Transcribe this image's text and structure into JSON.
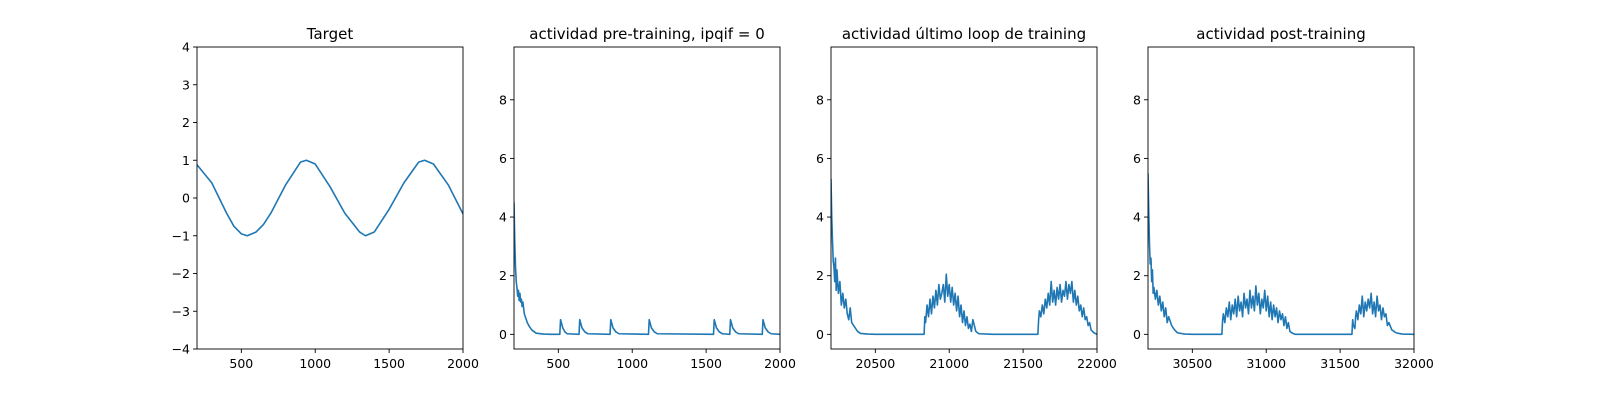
{
  "figure": {
    "line_color": "#1f77b4",
    "axis_color": "#000000",
    "background": "#ffffff"
  },
  "chart_data": [
    {
      "type": "line",
      "title": "Target",
      "xlabel": "",
      "ylabel": "",
      "xlim": [
        200,
        2000
      ],
      "ylim": [
        -4,
        4
      ],
      "xticks": [
        500,
        1000,
        1500,
        2000
      ],
      "yticks": [
        -4,
        -3,
        -2,
        -1,
        0,
        1,
        2,
        3,
        4
      ],
      "grid": false,
      "series": [
        {
          "x": [
            200,
            300,
            400,
            450,
            500,
            540,
            600,
            650,
            700,
            800,
            900,
            940,
            1000,
            1100,
            1200,
            1300,
            1340,
            1400,
            1500,
            1600,
            1700,
            1740,
            1800,
            1900,
            2000
          ],
          "values": [
            0.88,
            0.4,
            -0.4,
            -0.75,
            -0.95,
            -1.0,
            -0.9,
            -0.7,
            -0.4,
            0.35,
            0.95,
            1.0,
            0.9,
            0.3,
            -0.4,
            -0.9,
            -1.0,
            -0.9,
            -0.3,
            0.4,
            0.95,
            1.0,
            0.9,
            0.35,
            -0.42
          ]
        }
      ]
    },
    {
      "type": "line",
      "title": "actividad pre-training, ipqif = 0",
      "xlabel": "",
      "ylabel": "",
      "xlim": [
        200,
        2000
      ],
      "ylim": [
        -0.5,
        9.8
      ],
      "xticks": [
        500,
        1000,
        1500,
        2000
      ],
      "yticks": [
        0,
        2,
        4,
        6,
        8
      ],
      "grid": false,
      "series": [
        {
          "x": [
            200,
            205,
            210,
            215,
            220,
            225,
            230,
            235,
            240,
            245,
            250,
            255,
            260,
            270,
            280,
            290,
            300,
            320,
            350,
            400,
            450,
            510,
            515,
            530,
            545,
            560,
            640,
            645,
            660,
            680,
            700,
            850,
            855,
            870,
            890,
            910,
            1110,
            1115,
            1130,
            1150,
            1170,
            1550,
            1555,
            1570,
            1590,
            1610,
            1660,
            1665,
            1680,
            1700,
            1720,
            1880,
            1885,
            1900,
            1920,
            1940,
            2000
          ],
          "values": [
            4.5,
            3.2,
            2.3,
            1.8,
            1.6,
            1.3,
            1.5,
            1.15,
            1.4,
            1.1,
            1.2,
            0.95,
            1.1,
            0.7,
            0.55,
            0.4,
            0.3,
            0.15,
            0.04,
            0.01,
            0.0,
            0.0,
            0.5,
            0.22,
            0.08,
            0.02,
            0.0,
            0.5,
            0.22,
            0.08,
            0.02,
            0.0,
            0.5,
            0.22,
            0.08,
            0.02,
            0.0,
            0.5,
            0.22,
            0.08,
            0.02,
            0.0,
            0.5,
            0.22,
            0.08,
            0.02,
            0.0,
            0.5,
            0.22,
            0.08,
            0.02,
            0.0,
            0.5,
            0.22,
            0.08,
            0.02,
            0.0
          ]
        }
      ]
    },
    {
      "type": "line",
      "title": "actividad último loop de training",
      "xlabel": "",
      "ylabel": "",
      "xlim": [
        20200,
        22000
      ],
      "ylim": [
        -0.5,
        9.8
      ],
      "xticks": [
        20500,
        21000,
        21500,
        22000
      ],
      "yticks": [
        0,
        2,
        4,
        6,
        8
      ],
      "grid": false,
      "series": [
        {
          "x": [
            20200,
            20205,
            20210,
            20215,
            20220,
            20225,
            20230,
            20235,
            20240,
            20250,
            20260,
            20270,
            20280,
            20290,
            20300,
            20310,
            20320,
            20330,
            20340,
            20360,
            20380,
            20400,
            20450,
            20500,
            20600,
            20700,
            20800,
            20830,
            20835,
            20840,
            20850,
            20860,
            20870,
            20880,
            20890,
            20900,
            20910,
            20920,
            20930,
            20940,
            20950,
            20960,
            20970,
            20980,
            20990,
            21000,
            21010,
            21020,
            21030,
            21040,
            21050,
            21060,
            21070,
            21080,
            21090,
            21100,
            21110,
            21120,
            21130,
            21140,
            21150,
            21160,
            21180,
            21200,
            21300,
            21400,
            21500,
            21600,
            21605,
            21610,
            21620,
            21630,
            21640,
            21650,
            21660,
            21670,
            21680,
            21690,
            21700,
            21710,
            21720,
            21730,
            21740,
            21750,
            21760,
            21770,
            21780,
            21790,
            21800,
            21810,
            21820,
            21830,
            21840,
            21850,
            21860,
            21870,
            21880,
            21890,
            21900,
            21910,
            21920,
            21930,
            21940,
            21950,
            21960,
            21970,
            21980,
            22000
          ],
          "values": [
            5.3,
            4.0,
            3.2,
            2.5,
            2.3,
            1.8,
            2.6,
            1.5,
            2.2,
            1.4,
            1.8,
            1.0,
            1.4,
            0.9,
            1.2,
            0.7,
            0.5,
            0.9,
            0.4,
            0.25,
            0.1,
            0.03,
            0.01,
            0.0,
            0.0,
            0.0,
            0.0,
            0.0,
            0.6,
            0.4,
            1.0,
            0.6,
            1.2,
            0.7,
            1.3,
            0.9,
            1.5,
            1.0,
            1.7,
            1.2,
            1.4,
            1.7,
            1.1,
            2.05,
            1.3,
            1.7,
            1.1,
            1.6,
            1.0,
            1.4,
            0.8,
            1.3,
            0.6,
            1.0,
            0.4,
            0.8,
            0.3,
            0.6,
            0.2,
            0.35,
            0.1,
            0.5,
            0.1,
            0.02,
            0.0,
            0.0,
            0.0,
            0.0,
            0.5,
            0.8,
            0.6,
            1.0,
            0.7,
            1.2,
            0.9,
            1.4,
            1.0,
            1.8,
            1.1,
            1.5,
            1.0,
            1.6,
            1.2,
            1.7,
            1.1,
            1.5,
            1.3,
            1.8,
            1.2,
            1.7,
            1.4,
            1.8,
            1.1,
            1.5,
            1.0,
            1.3,
            0.8,
            1.0,
            0.6,
            0.9,
            0.5,
            0.6,
            0.3,
            0.4,
            0.15,
            0.1,
            0.05,
            0.0
          ]
        }
      ]
    },
    {
      "type": "line",
      "title": "actividad post-training",
      "xlabel": "",
      "ylabel": "",
      "xlim": [
        30200,
        32000
      ],
      "ylim": [
        -0.5,
        9.8
      ],
      "xticks": [
        30500,
        31000,
        31500,
        32000
      ],
      "yticks": [
        0,
        2,
        4,
        6,
        8
      ],
      "grid": false,
      "series": [
        {
          "x": [
            30200,
            30205,
            30210,
            30215,
            30220,
            30225,
            30230,
            30235,
            30240,
            30250,
            30260,
            30270,
            30280,
            30290,
            30300,
            30310,
            30320,
            30330,
            30340,
            30360,
            30380,
            30400,
            30450,
            30500,
            30600,
            30700,
            30705,
            30710,
            30720,
            30730,
            30740,
            30750,
            30760,
            30770,
            30780,
            30790,
            30800,
            30810,
            30820,
            30830,
            30840,
            30850,
            30860,
            30870,
            30880,
            30890,
            30900,
            30910,
            30920,
            30930,
            30940,
            30950,
            30960,
            30970,
            30980,
            30990,
            31000,
            31010,
            31020,
            31030,
            31040,
            31050,
            31060,
            31070,
            31080,
            31090,
            31100,
            31110,
            31120,
            31130,
            31140,
            31150,
            31160,
            31180,
            31200,
            31300,
            31400,
            31500,
            31580,
            31585,
            31590,
            31600,
            31605,
            31610,
            31620,
            31630,
            31640,
            31650,
            31660,
            31670,
            31680,
            31690,
            31700,
            31710,
            31720,
            31730,
            31740,
            31750,
            31760,
            31770,
            31780,
            31790,
            31800,
            31810,
            31820,
            31830,
            31850,
            31880,
            31920,
            32000
          ],
          "values": [
            5.5,
            4.2,
            3.1,
            2.4,
            2.6,
            1.8,
            2.2,
            1.4,
            1.6,
            1.2,
            1.5,
            1.0,
            1.3,
            0.8,
            1.1,
            0.6,
            0.9,
            0.4,
            0.6,
            0.3,
            0.15,
            0.05,
            0.01,
            0.0,
            0.0,
            0.0,
            0.5,
            0.7,
            0.4,
            0.9,
            0.6,
            1.1,
            0.5,
            1.0,
            0.7,
            1.2,
            0.6,
            1.3,
            0.8,
            1.1,
            0.6,
            1.4,
            0.9,
            1.2,
            0.7,
            1.5,
            0.9,
            1.3,
            0.8,
            1.65,
            1.0,
            1.4,
            0.7,
            1.2,
            0.9,
            1.5,
            0.8,
            1.3,
            0.6,
            1.1,
            0.5,
            1.0,
            0.6,
            0.9,
            0.4,
            0.8,
            0.5,
            0.7,
            0.3,
            0.6,
            0.2,
            0.4,
            0.1,
            0.03,
            0.0,
            0.0,
            0.0,
            0.0,
            0.0,
            0.5,
            0.3,
            0.2,
            0.6,
            0.8,
            0.5,
            1.0,
            0.7,
            1.3,
            0.6,
            1.1,
            0.8,
            1.2,
            0.9,
            1.4,
            0.7,
            1.1,
            0.6,
            1.3,
            0.8,
            1.0,
            0.5,
            0.9,
            0.6,
            0.7,
            0.3,
            0.4,
            0.15,
            0.05,
            0.01,
            0.0
          ]
        }
      ]
    }
  ]
}
